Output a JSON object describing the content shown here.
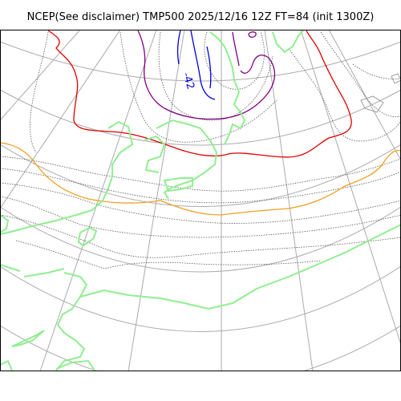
{
  "title": "NCEP(See disclaimer) TMP500 2025/12/16 12Z FT=84 (init 1300Z)",
  "contour_labels": [
    "-42"
  ],
  "colors": {
    "background": "#ffffff",
    "frame": "#000000",
    "graticule": "#aaaaaa",
    "coastline": "#90ee90",
    "isotherm_minor": "#555555",
    "isotherm_minus42": "#0000dd",
    "isotherm_purple": "#800080",
    "isotherm_red": "#e00000",
    "isotherm_orange": "#f0a020"
  },
  "icons": [
    "map-frame",
    "graticule-lines",
    "coastlines",
    "isotherms"
  ]
}
